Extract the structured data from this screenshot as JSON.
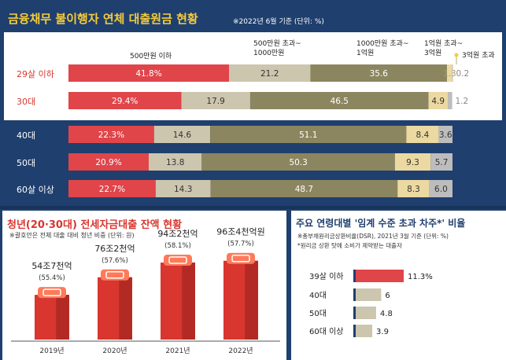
{
  "colors": {
    "bg_navy": "#1f3f6e",
    "accent_yellow": "#f5cc3a",
    "red": "#e0454a",
    "beige": "#cdc6ae",
    "olive": "#8c8660",
    "pale_yellow": "#ecd9a1",
    "gray": "#bdbdbd"
  },
  "top": {
    "title": "금융채무 불이행자 연체 대출원금 현황",
    "note": "※2022년 6월 기준 (단위: %)",
    "legend": [
      "500만원 이하",
      "500만원 초과~\n1000만원",
      "1000만원 초과~\n1억원",
      "1억원 초과~\n3억원",
      "3억원 초과"
    ]
  },
  "bottom_left": {
    "title": "청년(20·30대) 전세자금대출 잔액 현황",
    "note": "※괄호안은 전체 대출 대비 청년 비중 (단위: 원)"
  },
  "bottom_right": {
    "title": "주요 연령대별 '임계 수준 초과 차주*' 비율",
    "note1": "※총부채원리금상환비율(DSR), 2021년 3월 기준 (단위: %)",
    "note2": "*원리금 상환 탓에 소비가 제약받는 대출자"
  },
  "chart_data": [
    {
      "type": "bar",
      "stacked": true,
      "orientation": "horizontal",
      "title": "금융채무 불이행자 연체 대출원금 현황",
      "categories": [
        "29살 이하",
        "30대",
        "40대",
        "50대",
        "60살 이상"
      ],
      "series": [
        {
          "name": "500만원 이하",
          "values": [
            41.8,
            29.4,
            22.3,
            20.9,
            22.7
          ],
          "labels": [
            "41.8%",
            "29.4%",
            "22.3%",
            "20.9%",
            "22.7%"
          ],
          "color": "#e0454a"
        },
        {
          "name": "500만원 초과~1000만원",
          "values": [
            21.2,
            17.9,
            14.6,
            13.8,
            14.3
          ],
          "labels": [
            "21.2",
            "17.9",
            "14.6",
            "13.8",
            "14.3"
          ],
          "color": "#cdc6ae"
        },
        {
          "name": "1000만원 초과~1억원",
          "values": [
            35.6,
            46.5,
            51.1,
            50.3,
            48.7
          ],
          "labels": [
            "35.6",
            "46.5",
            "51.1",
            "50.3",
            "48.7"
          ],
          "color": "#8c8660"
        },
        {
          "name": "1억원 초과~3억원",
          "values": [
            1.3,
            4.9,
            8.4,
            9.3,
            8.3
          ],
          "labels": [
            "1.3",
            "4.9",
            "8.4",
            "9.3",
            "8.3"
          ],
          "color": "#ecd9a1"
        },
        {
          "name": "3억원 초과",
          "values": [
            0.2,
            1.2,
            3.6,
            5.7,
            6.0
          ],
          "labels": [
            "0.2",
            "1.2",
            "3.6",
            "5.7",
            "6.0"
          ],
          "color": "#bdbdbd"
        }
      ]
    },
    {
      "type": "bar",
      "title": "청년(20·30대) 전세자금대출 잔액 현황",
      "categories": [
        "2019년",
        "2020년",
        "2021년",
        "2022년"
      ],
      "values": [
        54.7,
        76.2,
        94.2,
        96.4
      ],
      "value_labels": [
        "54조7천억",
        "76조2천억",
        "94조2천억",
        "96조4천억원"
      ],
      "share_labels": [
        "(55.4%)",
        "(57.6%)",
        "(58.1%)",
        "(57.7%)"
      ],
      "share_values": [
        55.4,
        57.6,
        58.1,
        57.7
      ],
      "unit": "조원"
    },
    {
      "type": "bar",
      "orientation": "horizontal",
      "title": "주요 연령대별 '임계 수준 초과 차주*' 비율",
      "categories": [
        "39살 이하",
        "40대",
        "50대",
        "60대 이상"
      ],
      "values": [
        11.3,
        6,
        4.8,
        3.9
      ],
      "value_labels": [
        "11.3%",
        "6",
        "4.8",
        "3.9"
      ],
      "unit": "%"
    }
  ]
}
